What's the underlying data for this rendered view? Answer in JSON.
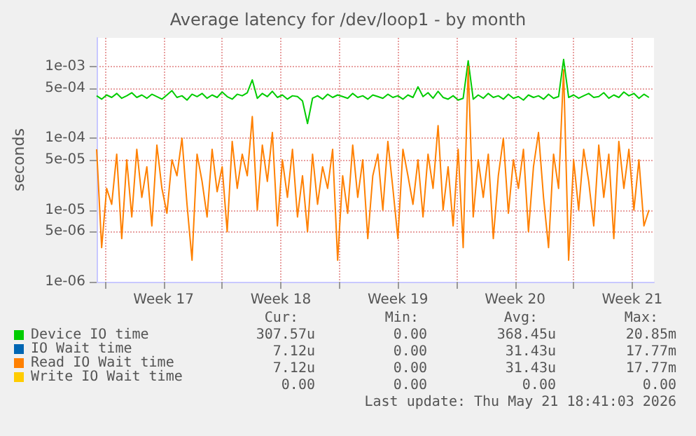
{
  "chart_data": {
    "type": "line",
    "title": "Average latency for /dev/loop1 - by month",
    "ylabel": "seconds",
    "log": "y",
    "grid": true,
    "legend": "bottom left",
    "marker": "none",
    "line_style": "solid",
    "xlim": [
      "2026-04-19T12:00",
      "2026-05-22T19:12"
    ],
    "xticks": [
      {
        "value": "2026-04-20",
        "label": null
      },
      {
        "value": "2026-04-23T12:00",
        "label": "Week 17"
      },
      {
        "value": "2026-04-27",
        "label": null
      },
      {
        "value": "2026-04-30T12:00",
        "label": "Week 18"
      },
      {
        "value": "2026-05-04",
        "label": null
      },
      {
        "value": "2026-05-07T12:00",
        "label": "Week 19"
      },
      {
        "value": "2026-05-11",
        "label": null
      },
      {
        "value": "2026-05-14T12:00",
        "label": "Week 20"
      },
      {
        "value": "2026-05-18",
        "label": null
      },
      {
        "value": "2026-05-21T12:00",
        "label": "Week 21"
      }
    ],
    "ylim": [
      1e-06,
      0.0025
    ],
    "yticks": [
      {
        "value": 1e-06,
        "label": "1e-06"
      },
      {
        "value": 5e-06,
        "label": "5e-06"
      },
      {
        "value": 1e-05,
        "label": "1e-05"
      },
      {
        "value": 5e-05,
        "label": "5e-05"
      },
      {
        "value": 0.0001,
        "label": "1e-04"
      },
      {
        "value": 0.0005,
        "label": "5e-04"
      },
      {
        "value": 0.001,
        "label": "1e-03"
      }
    ],
    "x": [
      "2026-04-19T12:00",
      "2026-04-19T19:12",
      "2026-04-20T02:24",
      "2026-04-20T09:36",
      "2026-04-20T16:48",
      "2026-04-21T00:00",
      "2026-04-21T07:12",
      "2026-04-21T14:24",
      "2026-04-21T21:36",
      "2026-04-22T04:48",
      "2026-04-22T12:00",
      "2026-04-22T19:12",
      "2026-04-23T02:24",
      "2026-04-23T09:36",
      "2026-04-23T16:48",
      "2026-04-24T00:00",
      "2026-04-24T07:12",
      "2026-04-24T14:24",
      "2026-04-24T21:36",
      "2026-04-25T04:48",
      "2026-04-25T12:00",
      "2026-04-25T19:12",
      "2026-04-26T02:24",
      "2026-04-26T09:36",
      "2026-04-26T16:48",
      "2026-04-27T00:00",
      "2026-04-27T07:12",
      "2026-04-27T14:24",
      "2026-04-27T21:36",
      "2026-04-28T04:48",
      "2026-04-28T12:00",
      "2026-04-28T19:12",
      "2026-04-29T02:24",
      "2026-04-29T09:36",
      "2026-04-29T16:48",
      "2026-04-30T00:00",
      "2026-04-30T07:12",
      "2026-04-30T14:24",
      "2026-04-30T21:36",
      "2026-05-01T04:48",
      "2026-05-01T12:00",
      "2026-05-01T19:12",
      "2026-05-02T02:24",
      "2026-05-02T09:36",
      "2026-05-02T16:48",
      "2026-05-03T00:00",
      "2026-05-03T07:12",
      "2026-05-03T14:24",
      "2026-05-03T21:36",
      "2026-05-04T04:48",
      "2026-05-04T12:00",
      "2026-05-04T19:12",
      "2026-05-05T02:24",
      "2026-05-05T09:36",
      "2026-05-05T16:48",
      "2026-05-06T00:00",
      "2026-05-06T07:12",
      "2026-05-06T14:24",
      "2026-05-06T21:36",
      "2026-05-07T04:48",
      "2026-05-07T12:00",
      "2026-05-07T19:12",
      "2026-05-08T02:24",
      "2026-05-08T09:36",
      "2026-05-08T16:48",
      "2026-05-09T00:00",
      "2026-05-09T07:12",
      "2026-05-09T14:24",
      "2026-05-09T21:36",
      "2026-05-10T04:48",
      "2026-05-10T12:00",
      "2026-05-10T19:12",
      "2026-05-11T02:24",
      "2026-05-11T09:36",
      "2026-05-11T16:48",
      "2026-05-12T00:00",
      "2026-05-12T07:12",
      "2026-05-12T14:24",
      "2026-05-12T21:36",
      "2026-05-13T04:48",
      "2026-05-13T12:00",
      "2026-05-13T19:12",
      "2026-05-14T02:24",
      "2026-05-14T09:36",
      "2026-05-14T16:48",
      "2026-05-15T00:00",
      "2026-05-15T07:12",
      "2026-05-15T14:24",
      "2026-05-15T21:36",
      "2026-05-16T04:48",
      "2026-05-16T12:00",
      "2026-05-16T19:12",
      "2026-05-17T02:24",
      "2026-05-17T09:36",
      "2026-05-17T16:48",
      "2026-05-18T00:00",
      "2026-05-18T07:12",
      "2026-05-18T14:24",
      "2026-05-18T21:36",
      "2026-05-19T04:48",
      "2026-05-19T12:00",
      "2026-05-19T19:12",
      "2026-05-20T02:24",
      "2026-05-20T09:36",
      "2026-05-20T16:48",
      "2026-05-21T00:00",
      "2026-05-21T07:12",
      "2026-05-21T14:24",
      "2026-05-21T21:36",
      "2026-05-22T04:48",
      "2026-05-22T12:00"
    ],
    "series": [
      {
        "name": "Device IO time",
        "color": "#00cc00",
        "values": [
          0.00039,
          0.00035,
          0.0004,
          0.00037,
          0.00042,
          0.00036,
          0.00039,
          0.00043,
          0.00037,
          0.0004,
          0.00036,
          0.00041,
          0.00038,
          0.00035,
          0.0004,
          0.00046,
          0.00037,
          0.00039,
          0.00034,
          0.00041,
          0.00038,
          0.00042,
          0.00036,
          0.0004,
          0.00037,
          0.00044,
          0.00038,
          0.00035,
          0.00041,
          0.00039,
          0.00043,
          0.00065,
          0.00036,
          0.00042,
          0.00038,
          0.00045,
          0.00037,
          0.0004,
          0.00035,
          0.00039,
          0.00038,
          0.00033,
          0.00016,
          0.00036,
          0.00039,
          0.00035,
          0.00041,
          0.00037,
          0.0004,
          0.00038,
          0.00036,
          0.00042,
          0.00037,
          0.00039,
          0.00035,
          0.0004,
          0.00038,
          0.00036,
          0.00041,
          0.00037,
          0.00039,
          0.00035,
          0.0004,
          0.00037,
          0.00052,
          0.00038,
          0.00043,
          0.00036,
          0.00045,
          0.00037,
          0.00035,
          0.00039,
          0.00034,
          0.00036,
          0.0012,
          0.00035,
          0.0004,
          0.00036,
          0.00042,
          0.00037,
          0.00039,
          0.00035,
          0.00041,
          0.00036,
          0.00038,
          0.00034,
          0.0004,
          0.00037,
          0.00039,
          0.00035,
          0.00041,
          0.00036,
          0.00038,
          0.00125,
          0.00037,
          0.0004,
          0.00036,
          0.00039,
          0.00042,
          0.00037,
          0.00038,
          0.00043,
          0.00036,
          0.0004,
          0.00037,
          0.00044,
          0.00039,
          0.00042,
          0.00036,
          0.00041,
          0.00037
        ]
      },
      {
        "name": "IO Wait time",
        "color": "#0066b3",
        "values": [
          null,
          null,
          null,
          null,
          null,
          null,
          null,
          null,
          null,
          null,
          null,
          null,
          null,
          null,
          null,
          null,
          null,
          null,
          null,
          null,
          null,
          null,
          null,
          null,
          null,
          null,
          null,
          null,
          null,
          null,
          null,
          null,
          null,
          null,
          null,
          null,
          null,
          null,
          null,
          null,
          null,
          null,
          null,
          null,
          null,
          null,
          null,
          null,
          null,
          null,
          null,
          null,
          null,
          null,
          null,
          null,
          null,
          null,
          null,
          null,
          null,
          null,
          null,
          null,
          null,
          null,
          null,
          null,
          null,
          null,
          null,
          null,
          null,
          null,
          null,
          null,
          null,
          null,
          null,
          null,
          null,
          null,
          null,
          null,
          null,
          null,
          null,
          null,
          null,
          null,
          null,
          null,
          null,
          null,
          null,
          null,
          null,
          null,
          null,
          null,
          null,
          null,
          null,
          null,
          null,
          null,
          null,
          null,
          null,
          null,
          null
        ]
      },
      {
        "name": "Read IO Wait time",
        "color": "#ff8000",
        "values": [
          7e-05,
          3e-06,
          2e-05,
          1.2e-05,
          6e-05,
          4e-06,
          5e-05,
          8e-06,
          7e-05,
          1.5e-05,
          4e-05,
          6e-06,
          8e-05,
          2e-05,
          9e-06,
          5e-05,
          3e-05,
          0.0001,
          1.2e-05,
          2e-06,
          6e-05,
          2.5e-05,
          8e-06,
          7e-05,
          1.8e-05,
          4e-05,
          5e-06,
          9e-05,
          2e-05,
          6e-05,
          3e-05,
          0.0002,
          1e-05,
          8e-05,
          2.5e-05,
          0.00012,
          6e-06,
          5e-05,
          1.5e-05,
          7e-05,
          8e-06,
          3e-05,
          5e-06,
          6e-05,
          1.2e-05,
          4e-05,
          2e-05,
          7e-05,
          2e-06,
          3e-05,
          9e-06,
          8e-05,
          1.5e-05,
          5e-05,
          4e-06,
          3e-05,
          6e-05,
          1e-05,
          9e-05,
          2e-05,
          4e-06,
          7e-05,
          3e-05,
          1.2e-05,
          5e-05,
          8e-06,
          6e-05,
          2e-05,
          0.00015,
          1e-05,
          4e-05,
          6e-06,
          7e-05,
          3e-06,
          0.001,
          8e-06,
          5e-05,
          1.5e-05,
          6e-05,
          4e-06,
          3e-05,
          0.0001,
          9e-06,
          5e-05,
          2e-05,
          7e-05,
          5e-06,
          4e-05,
          0.00012,
          1.5e-05,
          3e-06,
          6e-05,
          2e-05,
          0.0009,
          2e-06,
          5e-05,
          1e-05,
          7e-05,
          2.5e-05,
          6e-06,
          8e-05,
          1.5e-05,
          6e-05,
          4e-06,
          9e-05,
          2e-05,
          7e-05,
          1e-05,
          5e-05,
          6e-06,
          1e-05
        ]
      },
      {
        "name": "Write IO Wait time",
        "color": "#ffcc00",
        "values": [
          null,
          null,
          null,
          null,
          null,
          null,
          null,
          null,
          null,
          null,
          null,
          null,
          null,
          null,
          null,
          null,
          null,
          null,
          null,
          null,
          null,
          null,
          null,
          null,
          null,
          null,
          null,
          null,
          null,
          null,
          null,
          null,
          null,
          null,
          null,
          null,
          null,
          null,
          null,
          null,
          null,
          null,
          null,
          null,
          null,
          null,
          null,
          null,
          null,
          null,
          null,
          null,
          null,
          null,
          null,
          null,
          null,
          null,
          null,
          null,
          null,
          null,
          null,
          null,
          null,
          null,
          null,
          null,
          null,
          null,
          null,
          null,
          null,
          null,
          null,
          null,
          null,
          null,
          null,
          null,
          null,
          null,
          null,
          null,
          null,
          null,
          null,
          null,
          null,
          null,
          null,
          null,
          null,
          null,
          null,
          null,
          null,
          null,
          null,
          null,
          null,
          null,
          null,
          null,
          null,
          null,
          null,
          null,
          null,
          null,
          null
        ]
      }
    ],
    "annotations": [
      "Cur:",
      "Min:",
      "Avg:",
      "Max:",
      "307.57u",
      "0.00",
      "368.45u",
      "20.85m",
      "7.12u",
      "0.00",
      "31.43u",
      "17.77m",
      "7.12u",
      "0.00",
      "31.43u",
      "17.77m",
      "0.00",
      "0.00",
      "0.00",
      "0.00",
      "Last update: Thu May 21 18:41:03 2026"
    ]
  }
}
